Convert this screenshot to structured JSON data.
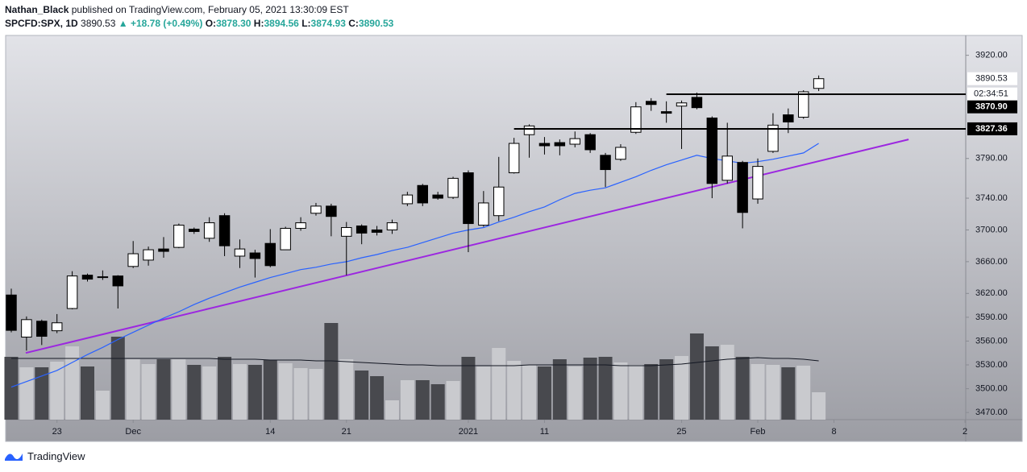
{
  "header": {
    "author": "Nathan_Black",
    "published": "published on TradingView.com, February 05, 2021 13:30:09 EST",
    "symbol": "SPCFD:SPX, 1D",
    "last": "3890.53",
    "change": "▲ +18.78 (+0.49%)",
    "ohlc": [
      {
        "key": "O:",
        "value": "3878.30"
      },
      {
        "key": "H:",
        "value": "3894.56"
      },
      {
        "key": "L:",
        "value": "3874.93"
      },
      {
        "key": "C:",
        "value": "3890.53"
      }
    ]
  },
  "footer": {
    "brand": "TradingView"
  },
  "chart_data": {
    "type": "candlestick",
    "open": [
      3618,
      3565,
      3585,
      3573,
      3601,
      3643,
      3640,
      3642,
      3654,
      3662,
      3676,
      3678,
      3701,
      3689.5,
      3718,
      3667,
      3671,
      3683,
      3675,
      3702,
      3721,
      3730,
      3692,
      3705,
      3700,
      3700,
      3733,
      3756,
      3744,
      3741,
      3772,
      3706,
      3718,
      3772,
      3820,
      3809,
      3810,
      3808,
      3820,
      3794,
      3789,
      3823,
      3862,
      3849,
      3856,
      3867,
      3841,
      3762.5,
      3785,
      3739,
      3799,
      3845,
      3842,
      3878.3
    ],
    "high": [
      3626,
      3591,
      3587,
      3594,
      3648,
      3645,
      3649,
      3643,
      3686,
      3679,
      3691,
      3708,
      3703,
      3716,
      3721,
      3688,
      3675,
      3701,
      3704,
      3716,
      3734,
      3733,
      3710,
      3707,
      3705,
      3713,
      3748,
      3758,
      3748,
      3767,
      3775,
      3749,
      3792,
      3816,
      3833,
      3817,
      3814,
      3824,
      3822,
      3797,
      3808,
      3861,
      3866,
      3862,
      3863,
      3873,
      3843,
      3835,
      3787,
      3790,
      3847,
      3853,
      3876,
      3894.56
    ],
    "low": [
      3571,
      3548,
      3555,
      3570,
      3600,
      3635,
      3637,
      3601,
      3652,
      3655,
      3665,
      3677,
      3695,
      3685,
      3667,
      3652,
      3640,
      3653,
      3675,
      3699,
      3718,
      3692,
      3643,
      3682,
      3693,
      3695,
      3730,
      3730,
      3738,
      3739,
      3672,
      3704,
      3711,
      3771,
      3791,
      3795,
      3794,
      3804,
      3797,
      3754,
      3787,
      3821,
      3850,
      3835,
      3802,
      3852,
      3740,
      3758.5,
      3702,
      3733,
      3797,
      3822,
      3840,
      3874.93
    ],
    "close": [
      3573.5,
      3587,
      3566,
      3583,
      3642,
      3638,
      3641,
      3629.5,
      3670,
      3675,
      3673,
      3706,
      3698,
      3709,
      3680,
      3676,
      3664,
      3655,
      3702,
      3709,
      3730,
      3717,
      3703,
      3696,
      3697,
      3709,
      3744,
      3734,
      3740,
      3765,
      3708,
      3734,
      3754,
      3809,
      3831,
      3806,
      3806,
      3815,
      3801,
      3776,
      3804,
      3855,
      3858,
      3847,
      3860,
      3854,
      3758.5,
      3793,
      3722,
      3780,
      3832,
      3836,
      3874,
      3890.53
    ],
    "ma": {
      "color": "#2962ff",
      "values": [
        3502,
        3509,
        3516,
        3523,
        3533,
        3543,
        3552,
        3562,
        3571,
        3580,
        3589,
        3597,
        3606,
        3614,
        3621,
        3628,
        3634,
        3640,
        3645,
        3650,
        3653,
        3657,
        3660,
        3665,
        3669,
        3674,
        3678,
        3684,
        3690,
        3696,
        3700,
        3703,
        3710,
        3716,
        3723,
        3729,
        3738,
        3746,
        3750,
        3753,
        3760,
        3767,
        3775,
        3782,
        3788,
        3794,
        3790,
        3787,
        3784,
        3786,
        3789,
        3793,
        3797,
        3809
      ]
    },
    "volume": [
      78,
      65,
      65,
      72,
      91,
      66,
      36,
      103,
      75,
      69,
      75,
      75,
      68,
      66,
      78,
      69,
      68,
      74,
      70,
      64,
      63,
      120,
      75,
      61,
      54,
      24,
      49,
      49,
      44,
      48,
      78,
      66,
      89,
      73,
      68,
      66,
      75,
      66,
      77,
      78,
      71,
      68,
      69,
      75,
      79,
      107,
      91,
      93,
      78,
      69,
      68,
      65,
      67,
      34
    ],
    "volume_ma": {
      "color": "#131722",
      "values": [
        76,
        76,
        76,
        76,
        76,
        76,
        76,
        76,
        76,
        76,
        76,
        76,
        76,
        76,
        75,
        75,
        75,
        74,
        74,
        74,
        73,
        73,
        72,
        71,
        70,
        69,
        68,
        68,
        67,
        67,
        67,
        67,
        67,
        67,
        68,
        68,
        68,
        68,
        68,
        68,
        67,
        67,
        67,
        68,
        69,
        71,
        73,
        75,
        76,
        77,
        76,
        76,
        75,
        73
      ]
    },
    "up_color": "#ffffff",
    "down_color": "#000000",
    "volume_up_color": "#c9cace",
    "volume_down_color": "#48494e",
    "trendline": {
      "x": [
        0.95,
        58.9
      ],
      "y": [
        3545,
        3814
      ],
      "color": "#9c27e0"
    },
    "levels": [
      {
        "value": 3870.9,
        "label": "3870.90",
        "start": 43
      },
      {
        "value": 3827.36,
        "label": "3827.36",
        "start": 33
      }
    ],
    "last_price": {
      "value": 3890.53,
      "label": "3890.53"
    },
    "countdown": "02:34:51",
    "xlim": [
      -0.37,
      62.65
    ],
    "xticks": [
      {
        "value": 3,
        "label": "23"
      },
      {
        "value": 8,
        "label": "Dec"
      },
      {
        "value": 17,
        "label": "14"
      },
      {
        "value": 22,
        "label": "21"
      },
      {
        "value": 30,
        "label": "2021"
      },
      {
        "value": 35,
        "label": "11"
      },
      {
        "value": 44,
        "label": "25"
      },
      {
        "value": 49,
        "label": "Feb"
      },
      {
        "value": 54,
        "label": "8"
      },
      {
        "value": 62.6,
        "label": "2"
      }
    ],
    "ylim": [
      3461,
      3945
    ],
    "yticks": [
      {
        "value": 3920,
        "label": "3920.00"
      },
      {
        "value": 3790,
        "label": "3790.00"
      },
      {
        "value": 3740,
        "label": "3740.00"
      },
      {
        "value": 3700,
        "label": "3700.00"
      },
      {
        "value": 3660,
        "label": "3660.00"
      },
      {
        "value": 3620,
        "label": "3620.00"
      },
      {
        "value": 3590,
        "label": "3590.00"
      },
      {
        "value": 3560,
        "label": "3560.00"
      },
      {
        "value": 3530,
        "label": "3530.00"
      },
      {
        "value": 3500,
        "label": "3500.00"
      },
      {
        "value": 3470,
        "label": "3470.00"
      }
    ],
    "grid": false
  }
}
